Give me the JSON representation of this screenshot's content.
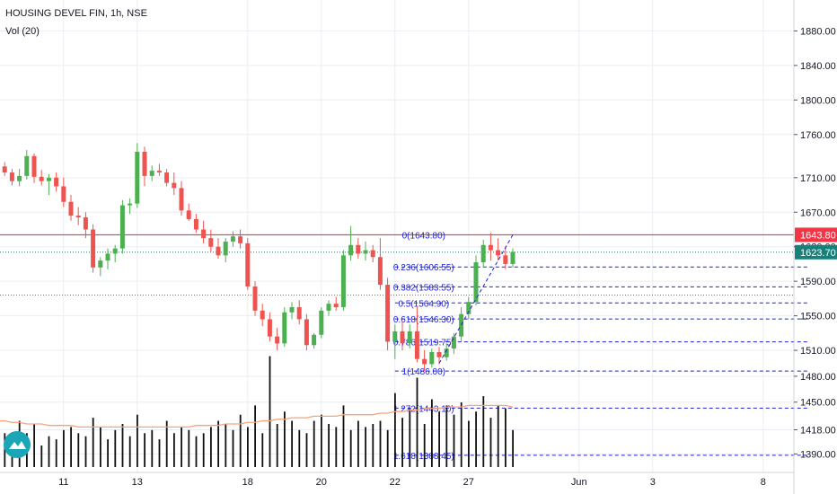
{
  "header": {
    "title": "HOUSING DEVEL FIN, 1h, NSE",
    "volume_label": "Vol (20)"
  },
  "colors": {
    "up": "#4caf50",
    "down": "#ef5350",
    "grid": "#e9edf3",
    "resistance": "#f23645",
    "fib": "#1e22d8",
    "vol_ma": "#f7a47b",
    "last_price_bg": "#14827a"
  },
  "chart_data": {
    "type": "candlestick",
    "title": "HOUSING DEVEL FIN, 1h, NSE",
    "y_axis": {
      "min": 1380,
      "max": 1895,
      "ticks": [
        "1880.00",
        "1840.00",
        "1800.00",
        "1760.00",
        "1710.00",
        "1670.00",
        "1630.00",
        "1590.00",
        "1550.00",
        "1510.00",
        "1480.00",
        "1450.00",
        "1418.00",
        "1390.00"
      ]
    },
    "x_axis": {
      "ticks": [
        {
          "label": "11",
          "index": 9
        },
        {
          "label": "13",
          "index": 19
        },
        {
          "label": "18",
          "index": 34
        },
        {
          "label": "20",
          "index": 44
        },
        {
          "label": "22",
          "index": 54
        },
        {
          "label": "27",
          "index": 64
        },
        {
          "label": "Jun",
          "index": 79
        },
        {
          "label": "3",
          "index": 89
        },
        {
          "label": "8",
          "index": 104
        }
      ]
    },
    "price_labels": [
      {
        "text": "1643.80",
        "value": 1643.8,
        "style": "resistance"
      },
      {
        "text": "1623.70",
        "value": 1623.7,
        "style": "last"
      }
    ],
    "horizontal_lines": [
      {
        "value": 1643.8,
        "style": "solid",
        "color": "resistance"
      },
      {
        "value": 1623.7,
        "style": "dotted",
        "color": "last"
      },
      {
        "value": 1574.0,
        "style": "dotted",
        "color": "gray"
      }
    ],
    "fibonacci": [
      {
        "label": "0(1643.80)",
        "value": 1643.8
      },
      {
        "label": "0.236(1606.55)",
        "value": 1606.55
      },
      {
        "label": "0.382(1583.55)",
        "value": 1583.55
      },
      {
        "label": "0.5(1564.90)",
        "value": 1564.9
      },
      {
        "label": "0.618(1546.30)",
        "value": 1546.3
      },
      {
        "label": "0.786(1519.75)",
        "value": 1519.75
      },
      {
        "label": "1(1486.00)",
        "value": 1486.0
      },
      {
        "label": "1.272(1443.10)",
        "value": 1443.1
      },
      {
        "label": "1.618(1388.45)",
        "value": 1388.45
      }
    ],
    "fib_start_index": 54,
    "fib_end_index": 110,
    "trend_line": {
      "from": {
        "index": 60,
        "value": 1495
      },
      "to": {
        "index": 70,
        "value": 1643.8
      }
    },
    "candles": [
      [
        1712,
        1726,
        1706,
        1723
      ],
      [
        1723,
        1728,
        1712,
        1716
      ],
      [
        1716,
        1720,
        1701,
        1706
      ],
      [
        1706,
        1720,
        1700,
        1712
      ],
      [
        1712,
        1742,
        1708,
        1735
      ],
      [
        1735,
        1738,
        1704,
        1711
      ],
      [
        1711,
        1719,
        1701,
        1706
      ],
      [
        1706,
        1714,
        1690,
        1710
      ],
      [
        1710,
        1716,
        1694,
        1700
      ],
      [
        1700,
        1710,
        1676,
        1682
      ],
      [
        1682,
        1690,
        1660,
        1666
      ],
      [
        1666,
        1676,
        1655,
        1664
      ],
      [
        1664,
        1670,
        1640,
        1650
      ],
      [
        1650,
        1656,
        1600,
        1606
      ],
      [
        1606,
        1618,
        1596,
        1614
      ],
      [
        1614,
        1628,
        1604,
        1622
      ],
      [
        1622,
        1632,
        1612,
        1628
      ],
      [
        1628,
        1684,
        1622,
        1678
      ],
      [
        1678,
        1686,
        1668,
        1680
      ],
      [
        1680,
        1750,
        1675,
        1740
      ],
      [
        1740,
        1746,
        1700,
        1712
      ],
      [
        1712,
        1724,
        1706,
        1718
      ],
      [
        1718,
        1726,
        1712,
        1716
      ],
      [
        1716,
        1720,
        1700,
        1704
      ],
      [
        1704,
        1716,
        1690,
        1698
      ],
      [
        1698,
        1706,
        1666,
        1672
      ],
      [
        1672,
        1680,
        1660,
        1662
      ],
      [
        1662,
        1668,
        1646,
        1650
      ],
      [
        1650,
        1660,
        1634,
        1640
      ],
      [
        1640,
        1650,
        1624,
        1630
      ],
      [
        1630,
        1640,
        1616,
        1620
      ],
      [
        1620,
        1640,
        1612,
        1636
      ],
      [
        1636,
        1648,
        1630,
        1642
      ],
      [
        1642,
        1650,
        1628,
        1634
      ],
      [
        1634,
        1640,
        1580,
        1584
      ],
      [
        1584,
        1590,
        1550,
        1556
      ],
      [
        1556,
        1564,
        1538,
        1546
      ],
      [
        1546,
        1554,
        1520,
        1526
      ],
      [
        1526,
        1536,
        1510,
        1518
      ],
      [
        1518,
        1560,
        1514,
        1554
      ],
      [
        1554,
        1566,
        1546,
        1560
      ],
      [
        1560,
        1568,
        1540,
        1546
      ],
      [
        1546,
        1552,
        1510,
        1516
      ],
      [
        1516,
        1530,
        1512,
        1528
      ],
      [
        1528,
        1560,
        1524,
        1556
      ],
      [
        1556,
        1568,
        1550,
        1564
      ],
      [
        1564,
        1572,
        1556,
        1560
      ],
      [
        1560,
        1626,
        1556,
        1620
      ],
      [
        1620,
        1654,
        1614,
        1632
      ],
      [
        1632,
        1640,
        1616,
        1622
      ],
      [
        1622,
        1636,
        1614,
        1626
      ],
      [
        1626,
        1632,
        1612,
        1618
      ],
      [
        1618,
        1640,
        1580,
        1586
      ],
      [
        1586,
        1594,
        1510,
        1520
      ],
      [
        1520,
        1540,
        1500,
        1532
      ],
      [
        1532,
        1544,
        1510,
        1518
      ],
      [
        1518,
        1540,
        1512,
        1532
      ],
      [
        1532,
        1560,
        1496,
        1500
      ],
      [
        1500,
        1510,
        1486,
        1494
      ],
      [
        1494,
        1512,
        1490,
        1508
      ],
      [
        1508,
        1514,
        1494,
        1502
      ],
      [
        1502,
        1518,
        1498,
        1512
      ],
      [
        1512,
        1530,
        1506,
        1526
      ],
      [
        1526,
        1560,
        1520,
        1552
      ],
      [
        1552,
        1572,
        1546,
        1566
      ],
      [
        1566,
        1620,
        1562,
        1612
      ],
      [
        1612,
        1638,
        1606,
        1632
      ],
      [
        1632,
        1646,
        1614,
        1626
      ],
      [
        1626,
        1640,
        1614,
        1620
      ],
      [
        1620,
        1630,
        1604,
        1610
      ],
      [
        1610,
        1628,
        1606,
        1624
      ]
    ],
    "volume": [
      20,
      22,
      15,
      30,
      22,
      28,
      14,
      20,
      18,
      24,
      26,
      22,
      20,
      32,
      26,
      18,
      24,
      28,
      20,
      34,
      22,
      24,
      18,
      30,
      22,
      26,
      24,
      20,
      22,
      26,
      30,
      28,
      24,
      34,
      26,
      40,
      22,
      72,
      28,
      36,
      30,
      24,
      22,
      30,
      34,
      28,
      26,
      40,
      24,
      30,
      26,
      28,
      30,
      24,
      48,
      32,
      38,
      58,
      28,
      44,
      36,
      40,
      34,
      42,
      30,
      36,
      46,
      32,
      40,
      38,
      24
    ],
    "volume_ma": [
      30,
      30,
      29,
      29,
      28,
      28,
      28,
      27,
      27,
      27,
      27,
      26,
      26,
      26,
      26,
      26,
      26,
      26,
      26,
      26,
      26,
      26,
      26,
      26,
      26,
      26,
      26,
      27,
      27,
      27,
      27,
      28,
      28,
      28,
      29,
      29,
      30,
      30,
      31,
      31,
      32,
      32,
      32,
      33,
      33,
      33,
      33,
      34,
      34,
      34,
      34,
      34,
      35,
      35,
      36,
      36,
      37,
      37,
      38,
      38,
      38,
      39,
      39,
      39,
      40,
      40,
      40,
      40,
      40,
      40,
      39
    ]
  }
}
